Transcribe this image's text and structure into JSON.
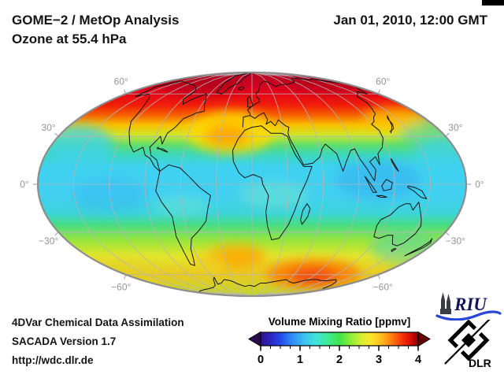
{
  "header": {
    "title_line1": "GOME−2 / MetOp Analysis",
    "title_line2": "Ozone at 55.4 hPa",
    "datetime": "Jan 01, 2010, 12:00 GMT"
  },
  "footer": {
    "line1": "4DVar Chemical Data Assimilation",
    "line2": "SACADA Version 1.7",
    "line3": "http://wdc.dlr.de"
  },
  "colorbar": {
    "title": "Volume Mixing Ratio [ppmv]",
    "ticks": [
      "0",
      "1",
      "2",
      "3",
      "4"
    ],
    "range": [
      0,
      4
    ],
    "units": "ppmv",
    "left_arrow_color": "#2c0a52",
    "right_arrow_color": "#640000",
    "gradient": [
      {
        "o": 0.0,
        "c": "#30128c"
      },
      {
        "o": 0.05,
        "c": "#2c20b8"
      },
      {
        "o": 0.12,
        "c": "#2545e8"
      },
      {
        "o": 0.2,
        "c": "#2f8cf5"
      },
      {
        "o": 0.28,
        "c": "#3cc3f0"
      },
      {
        "o": 0.35,
        "c": "#3fe3dc"
      },
      {
        "o": 0.42,
        "c": "#3eeb9a"
      },
      {
        "o": 0.5,
        "c": "#3fe44c"
      },
      {
        "o": 0.57,
        "c": "#8aee3a"
      },
      {
        "o": 0.64,
        "c": "#d6ef33"
      },
      {
        "o": 0.7,
        "c": "#fbe52c"
      },
      {
        "o": 0.77,
        "c": "#ffb81e"
      },
      {
        "o": 0.84,
        "c": "#ff7310"
      },
      {
        "o": 0.9,
        "c": "#f93308"
      },
      {
        "o": 0.95,
        "c": "#d90f04"
      },
      {
        "o": 1.0,
        "c": "#8c0000"
      }
    ]
  },
  "map": {
    "projection": "Mollweide",
    "lat_labels": [
      "60°",
      "30°",
      "0°",
      "−30°",
      "−60°"
    ],
    "grid_color": "#b5b5b5",
    "outline_color": "#8d8d8d",
    "coast_color": "#151515",
    "label_color": "#949494",
    "band_gradient": [
      {
        "o": 0.0,
        "c": "#c00022"
      },
      {
        "o": 0.08,
        "c": "#e4001e"
      },
      {
        "o": 0.145,
        "c": "#f01c0a"
      },
      {
        "o": 0.19,
        "c": "#f56000"
      },
      {
        "o": 0.235,
        "c": "#f8c000"
      },
      {
        "o": 0.28,
        "c": "#cfe628"
      },
      {
        "o": 0.325,
        "c": "#5fdd6e"
      },
      {
        "o": 0.365,
        "c": "#3dd8b8"
      },
      {
        "o": 0.42,
        "c": "#3ed2f0"
      },
      {
        "o": 0.55,
        "c": "#41d0f2"
      },
      {
        "o": 0.63,
        "c": "#3cd4da"
      },
      {
        "o": 0.68,
        "c": "#47dc86"
      },
      {
        "o": 0.75,
        "c": "#98e53c"
      },
      {
        "o": 0.82,
        "c": "#e2e62c"
      },
      {
        "o": 0.9,
        "c": "#eaca22"
      },
      {
        "o": 1.0,
        "c": "#c2d62e"
      }
    ]
  },
  "logos": {
    "riu_text": "RIU",
    "dlr_text": "DLR"
  },
  "chart_data": {
    "type": "heatmap",
    "title": "GOME−2 / MetOp Analysis — Ozone at 55.4 hPa",
    "datetime": "Jan 01, 2010, 12:00 GMT",
    "field": "Ozone volume mixing ratio",
    "units": "ppmv",
    "colorbar_range": [
      0,
      4
    ],
    "colorbar_ticks": [
      0,
      1,
      2,
      3,
      4
    ],
    "projection": "Mollweide world map, graticule every 30°",
    "latitude_band_estimates": [
      {
        "band": "60N–90N",
        "ppmv": [
          3.0,
          4.0
        ]
      },
      {
        "band": "45N–60N",
        "ppmv": [
          2.3,
          3.5
        ]
      },
      {
        "band": "30N–45N",
        "ppmv": [
          1.7,
          2.5
        ]
      },
      {
        "band": "20S–30N",
        "ppmv": [
          1.1,
          1.7
        ]
      },
      {
        "band": "40S–20S",
        "ppmv": [
          1.5,
          2.2
        ]
      },
      {
        "band": "65S–40S",
        "ppmv": [
          2.0,
          3.3
        ]
      }
    ],
    "notable_features": [
      "red maximum band (3–4 ppmv) across Arctic latitudes",
      "yellow-orange anomaly over North Atlantic near 45N",
      "cyan-blue minimum (~1.2 ppmv) across tropics",
      "orange-red maximum (~3.3 ppmv) near 60S south of Indian Ocean/Australia"
    ]
  }
}
